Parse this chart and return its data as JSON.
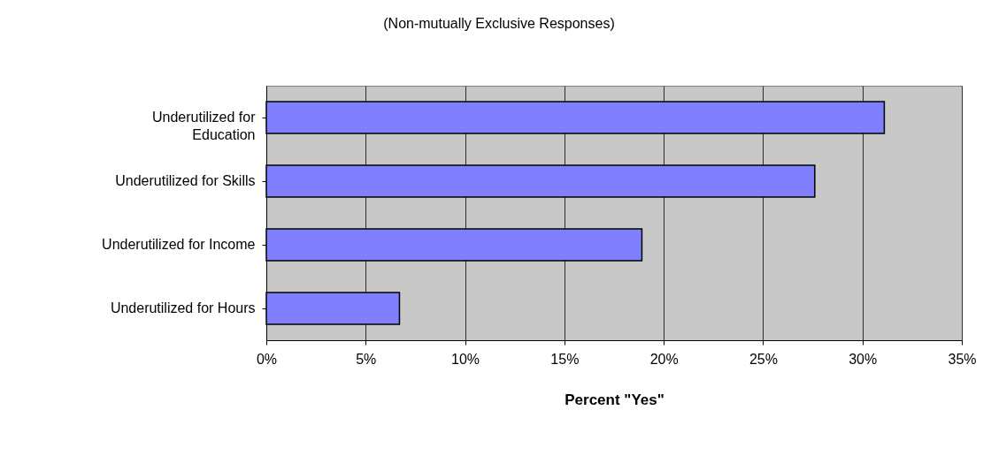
{
  "chart_data": {
    "type": "bar",
    "orientation": "horizontal",
    "title": "(Non-mutually Exclusive Responses)",
    "xlabel": "Percent \"Yes\"",
    "categories": [
      "Underutilized for Education",
      "Underutilized for Skills",
      "Underutilized for Income",
      "Underutilized for Hours"
    ],
    "values": [
      31.1,
      27.6,
      18.9,
      6.7
    ],
    "color": "#8080ff",
    "xlim": [
      0,
      35
    ],
    "xticks": [
      {
        "value": 0,
        "label": "0%"
      },
      {
        "value": 5,
        "label": "5%"
      },
      {
        "value": 10,
        "label": "10%"
      },
      {
        "value": 15,
        "label": "15%"
      },
      {
        "value": 20,
        "label": "20%"
      },
      {
        "value": 25,
        "label": "25%"
      },
      {
        "value": 30,
        "label": "30%"
      },
      {
        "value": 35,
        "label": "35%"
      }
    ],
    "grid": "x"
  }
}
